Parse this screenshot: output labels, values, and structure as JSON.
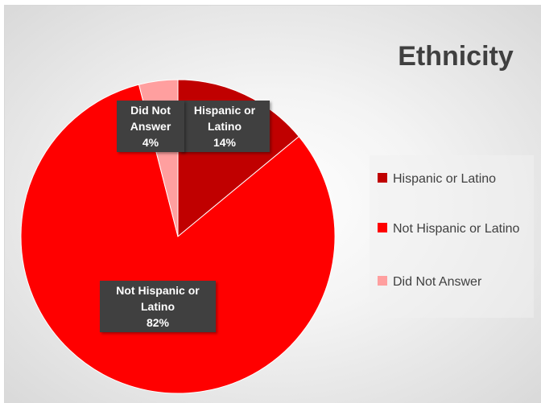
{
  "chart_data": {
    "type": "pie",
    "title": "Ethnicity",
    "slices": [
      {
        "label": "Hispanic or Latino",
        "value": 14,
        "color": "#c00000",
        "data_label": "Hispanic or\nLatino\n14%"
      },
      {
        "label": "Not Hispanic or Latino",
        "value": 82,
        "color": "#ff0000",
        "data_label": "Not Hispanic or\nLatino\n82%"
      },
      {
        "label": "Did Not Answer",
        "value": 4,
        "color": "#ff9f9f",
        "data_label": "Did Not\nAnswer\n4%"
      }
    ],
    "legend_position": "right",
    "legend": [
      {
        "label": "Hispanic or Latino",
        "color": "#c00000"
      },
      {
        "label": "Not Hispanic or Latino",
        "color": "#ff0000"
      },
      {
        "label": "Did Not Answer",
        "color": "#ff9f9f"
      }
    ]
  }
}
